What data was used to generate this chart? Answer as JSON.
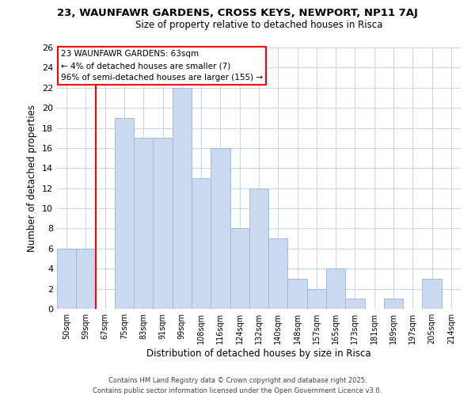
{
  "title_line1": "23, WAUNFAWR GARDENS, CROSS KEYS, NEWPORT, NP11 7AJ",
  "title_line2": "Size of property relative to detached houses in Risca",
  "xlabel": "Distribution of detached houses by size in Risca",
  "ylabel": "Number of detached properties",
  "categories": [
    "50sqm",
    "59sqm",
    "67sqm",
    "75sqm",
    "83sqm",
    "91sqm",
    "99sqm",
    "108sqm",
    "116sqm",
    "124sqm",
    "132sqm",
    "140sqm",
    "148sqm",
    "157sqm",
    "165sqm",
    "173sqm",
    "181sqm",
    "189sqm",
    "197sqm",
    "205sqm",
    "214sqm"
  ],
  "values": [
    6,
    6,
    0,
    19,
    17,
    17,
    22,
    13,
    16,
    8,
    12,
    7,
    3,
    2,
    4,
    1,
    0,
    1,
    0,
    3,
    0
  ],
  "bar_color": "#c9d9f0",
  "bar_edge_color": "#9ab5d5",
  "redline_x": 1.5,
  "ylim": [
    0,
    26
  ],
  "yticks": [
    0,
    2,
    4,
    6,
    8,
    10,
    12,
    14,
    16,
    18,
    20,
    22,
    24,
    26
  ],
  "annotation_title": "23 WAUNFAWR GARDENS: 63sqm",
  "annotation_line2": "← 4% of detached houses are smaller (7)",
  "annotation_line3": "96% of semi-detached houses are larger (155) →",
  "footer_line1": "Contains HM Land Registry data © Crown copyright and database right 2025.",
  "footer_line2": "Contains public sector information licensed under the Open Government Licence v3.0.",
  "background_color": "#ffffff",
  "grid_color": "#c8d8ec"
}
